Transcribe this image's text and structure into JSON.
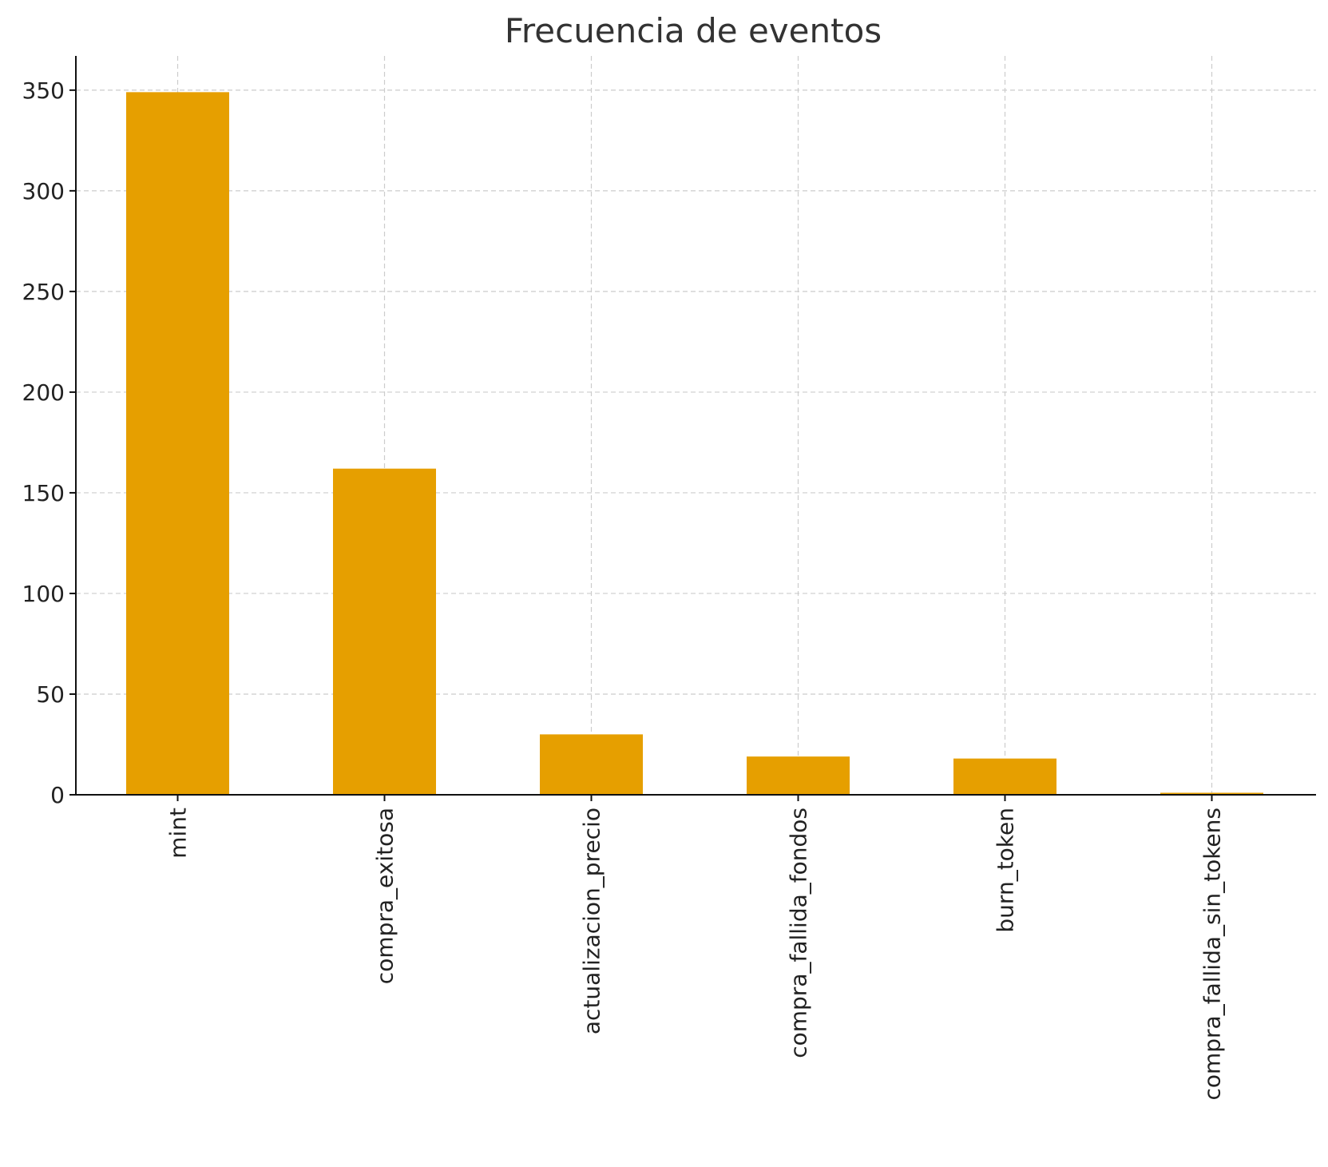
{
  "chart_data": {
    "type": "bar",
    "title": "Frecuencia de eventos",
    "xlabel": "",
    "ylabel": "",
    "categories": [
      "mint",
      "compra_exitosa",
      "actualizacion_precio",
      "compra_fallida_fondos",
      "burn_token",
      "compra_fallida_sin_tokens"
    ],
    "values": [
      349,
      162,
      30,
      19,
      18,
      1
    ],
    "ylim": [
      0,
      367
    ],
    "yticks": [
      0,
      50,
      100,
      150,
      200,
      250,
      300,
      350
    ],
    "grid": true,
    "bar_color": "#E69F00"
  }
}
